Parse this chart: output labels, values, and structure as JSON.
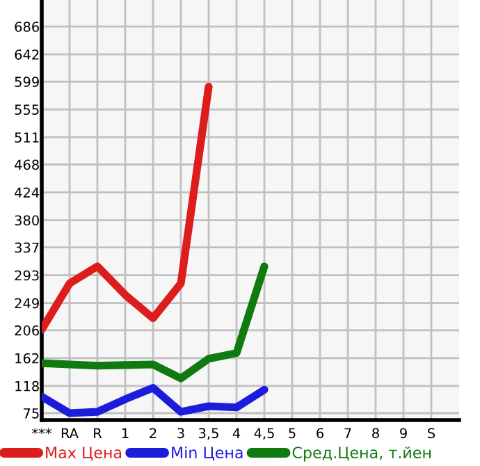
{
  "chart_data": {
    "type": "line",
    "categories": [
      "***",
      "RA",
      "R",
      "1",
      "2",
      "3",
      "3,5",
      "4",
      "4,5",
      "5",
      "6",
      "7",
      "8",
      "9",
      "S"
    ],
    "series": [
      {
        "name": "Max Цена",
        "color": "#dd1c1c",
        "values": [
          207,
          280,
          307,
          262,
          225,
          280,
          591,
          null,
          null,
          null,
          null,
          null,
          null,
          null,
          null
        ]
      },
      {
        "name": "Min Цена",
        "color": "#1c1cdd",
        "values": [
          101,
          75,
          77,
          97,
          115,
          77,
          86,
          84,
          112,
          null,
          null,
          null,
          null,
          null,
          null
        ]
      },
      {
        "name": "Сред.Цена, т.йен",
        "color": "#0f7a0f",
        "values": [
          154,
          152,
          150,
          151,
          152,
          130,
          161,
          170,
          307,
          null,
          null,
          null,
          null,
          null,
          null
        ]
      }
    ],
    "ylim": [
      64,
      728
    ],
    "yticks": [
      75,
      118,
      162,
      206,
      249,
      293,
      337,
      380,
      424,
      468,
      511,
      555,
      599,
      642,
      686
    ],
    "grid": true,
    "legend": "bottom",
    "marker": "none",
    "line_style": "solid"
  }
}
